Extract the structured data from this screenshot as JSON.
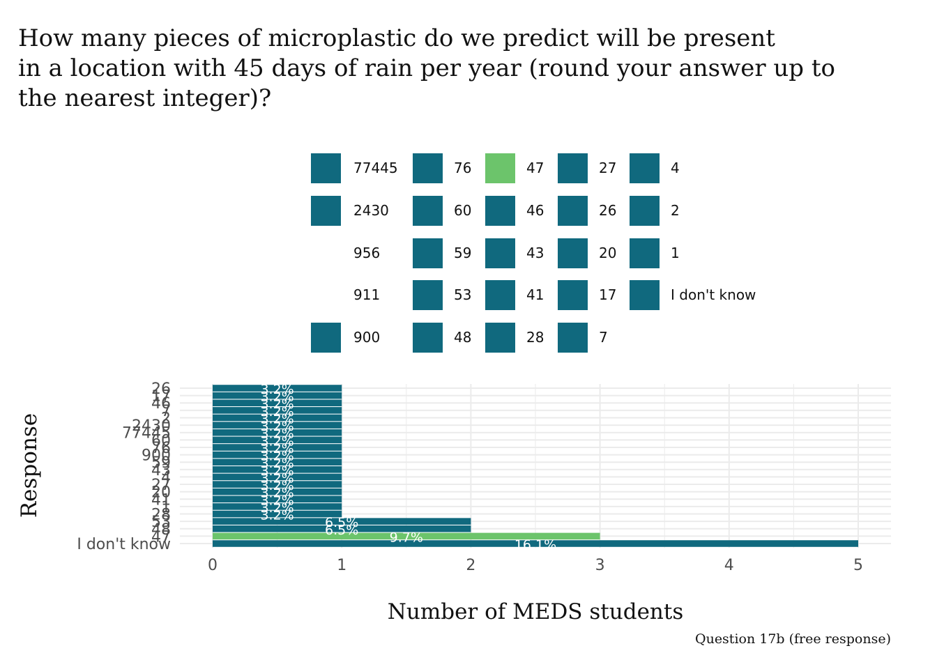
{
  "chart_data": {
    "type": "bar",
    "orientation": "horizontal",
    "title": "How many pieces of microplastic do we predict will be present\nin a location with 45 days of rain per year (round your answer up to\nthe nearest integer)?",
    "caption": "Question 17b (free response)",
    "xlabel": "Number of MEDS students",
    "ylabel": "Response",
    "xlim": [
      0,
      5
    ],
    "x_ticks": [
      "0",
      "1",
      "2",
      "3",
      "4",
      "5"
    ],
    "grid": true,
    "legend_position": "top",
    "colors": {
      "default": "#10697e",
      "highlight": "#6cc46b",
      "grid": "#ebebeb"
    },
    "categories": [
      "26",
      "17",
      "46",
      "7",
      "2",
      "2430",
      "77445",
      "60",
      "76",
      "900",
      "59",
      "43",
      "4",
      "27",
      "20",
      "41",
      "1",
      "28",
      "53",
      "48",
      "47",
      "I don't know"
    ],
    "values": [
      1,
      1,
      1,
      1,
      1,
      1,
      1,
      1,
      1,
      1,
      1,
      1,
      1,
      1,
      1,
      1,
      1,
      1,
      2,
      2,
      3,
      5
    ],
    "labels": [
      "3.2%",
      "3.2%",
      "3.2%",
      "3.2%",
      "3.2%",
      "3.2%",
      "3.2%",
      "3.2%",
      "3.2%",
      "3.2%",
      "3.2%",
      "3.2%",
      "3.2%",
      "3.2%",
      "3.2%",
      "3.2%",
      "3.2%",
      "3.2%",
      "6.5%",
      "6.5%",
      "9.7%",
      "16.1%"
    ],
    "highlight": [
      "47"
    ],
    "legend": {
      "columns": [
        [
          "77445",
          "2430",
          "956",
          "911",
          "900"
        ],
        [
          "76",
          "60",
          "59",
          "53",
          "48"
        ],
        [
          "47",
          "46",
          "43",
          "41",
          "28"
        ],
        [
          "27",
          "26",
          "20",
          "17",
          "7"
        ],
        [
          "4",
          "2",
          "1",
          "I don't know"
        ]
      ],
      "no_key": [
        "956",
        "911"
      ]
    }
  }
}
